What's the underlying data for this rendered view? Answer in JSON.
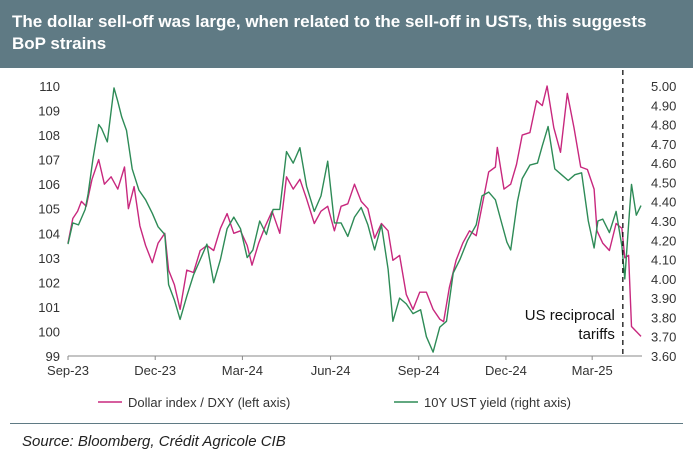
{
  "header": {
    "title": "The dollar sell-off was large, when related to the sell-off in USTs, this suggests BoP strains"
  },
  "source": "Source: Bloomberg, Crédit Agricole CIB",
  "colors": {
    "header_bg": "#5f7a84",
    "dxy": "#c8287e",
    "yield": "#2e8b57"
  },
  "chart_data": {
    "type": "line",
    "title": "The dollar sell-off was large, when related to the sell-off in USTs, this suggests BoP strains",
    "x_ticks": [
      "Sep-23",
      "Dec-23",
      "Mar-24",
      "Jun-24",
      "Sep-24",
      "Dec-24",
      "Mar-25"
    ],
    "x_range": [
      "2023-09-01",
      "2025-04-22"
    ],
    "y_left": {
      "ylim": [
        99,
        110
      ],
      "ticks": [
        "99",
        "100",
        "101",
        "102",
        "103",
        "104",
        "105",
        "106",
        "107",
        "108",
        "109",
        "110"
      ]
    },
    "y_right": {
      "ylim": [
        3.6,
        5.0
      ],
      "ticks": [
        "3.60",
        "3.70",
        "3.80",
        "3.90",
        "4.00",
        "4.10",
        "4.20",
        "4.30",
        "4.40",
        "4.50",
        "4.60",
        "4.70",
        "4.80",
        "4.90",
        "5.00"
      ]
    },
    "legend": {
      "placement": "bottom"
    },
    "annotation": {
      "lines": [
        "US reciprocal",
        "tariffs"
      ],
      "date": "2025-04-02"
    },
    "series": [
      {
        "name": "Dollar index / DXY (left axis)",
        "axis": "left",
        "color": "#c8287e",
        "points": [
          [
            "2023-09-01",
            103.6
          ],
          [
            "2023-09-06",
            104.6
          ],
          [
            "2023-09-11",
            104.9
          ],
          [
            "2023-09-15",
            105.3
          ],
          [
            "2023-09-20",
            105.1
          ],
          [
            "2023-09-26",
            106.2
          ],
          [
            "2023-10-03",
            107.0
          ],
          [
            "2023-10-09",
            106.0
          ],
          [
            "2023-10-16",
            106.3
          ],
          [
            "2023-10-23",
            105.8
          ],
          [
            "2023-10-30",
            106.7
          ],
          [
            "2023-11-03",
            105.0
          ],
          [
            "2023-11-09",
            105.9
          ],
          [
            "2023-11-15",
            104.3
          ],
          [
            "2023-11-21",
            103.5
          ],
          [
            "2023-11-28",
            102.8
          ],
          [
            "2023-12-04",
            103.6
          ],
          [
            "2023-12-11",
            104.0
          ],
          [
            "2023-12-15",
            102.5
          ],
          [
            "2023-12-21",
            101.9
          ],
          [
            "2023-12-27",
            100.9
          ],
          [
            "2024-01-03",
            102.5
          ],
          [
            "2024-01-10",
            102.4
          ],
          [
            "2024-01-17",
            103.3
          ],
          [
            "2024-01-24",
            103.5
          ],
          [
            "2024-01-31",
            103.3
          ],
          [
            "2024-02-07",
            104.2
          ],
          [
            "2024-02-14",
            104.8
          ],
          [
            "2024-02-21",
            104.0
          ],
          [
            "2024-02-28",
            104.1
          ],
          [
            "2024-03-06",
            103.5
          ],
          [
            "2024-03-11",
            102.7
          ],
          [
            "2024-03-18",
            103.6
          ],
          [
            "2024-03-25",
            104.3
          ],
          [
            "2024-04-01",
            104.9
          ],
          [
            "2024-04-09",
            104.0
          ],
          [
            "2024-04-16",
            106.3
          ],
          [
            "2024-04-23",
            105.8
          ],
          [
            "2024-04-30",
            106.2
          ],
          [
            "2024-05-07",
            105.4
          ],
          [
            "2024-05-15",
            104.4
          ],
          [
            "2024-05-22",
            104.9
          ],
          [
            "2024-05-29",
            105.1
          ],
          [
            "2024-06-05",
            104.1
          ],
          [
            "2024-06-12",
            105.1
          ],
          [
            "2024-06-19",
            105.2
          ],
          [
            "2024-06-26",
            106.0
          ],
          [
            "2024-07-03",
            105.3
          ],
          [
            "2024-07-10",
            105.0
          ],
          [
            "2024-07-17",
            103.8
          ],
          [
            "2024-07-24",
            104.4
          ],
          [
            "2024-07-31",
            104.1
          ],
          [
            "2024-08-05",
            102.9
          ],
          [
            "2024-08-12",
            103.1
          ],
          [
            "2024-08-19",
            101.5
          ],
          [
            "2024-08-26",
            100.9
          ],
          [
            "2024-09-02",
            101.6
          ],
          [
            "2024-09-09",
            101.6
          ],
          [
            "2024-09-16",
            100.9
          ],
          [
            "2024-09-23",
            100.5
          ],
          [
            "2024-09-27",
            100.4
          ],
          [
            "2024-10-03",
            101.8
          ],
          [
            "2024-10-10",
            102.9
          ],
          [
            "2024-10-17",
            103.6
          ],
          [
            "2024-10-24",
            104.1
          ],
          [
            "2024-10-31",
            103.9
          ],
          [
            "2024-11-06",
            105.1
          ],
          [
            "2024-11-13",
            106.5
          ],
          [
            "2024-11-20",
            106.7
          ],
          [
            "2024-11-22",
            107.5
          ],
          [
            "2024-11-29",
            105.8
          ],
          [
            "2024-12-06",
            106.0
          ],
          [
            "2024-12-12",
            106.8
          ],
          [
            "2024-12-18",
            108.0
          ],
          [
            "2024-12-26",
            108.1
          ],
          [
            "2025-01-02",
            109.4
          ],
          [
            "2025-01-08",
            109.2
          ],
          [
            "2025-01-13",
            110.0
          ],
          [
            "2025-01-20",
            108.3
          ],
          [
            "2025-01-27",
            107.3
          ],
          [
            "2025-02-03",
            109.7
          ],
          [
            "2025-02-10",
            108.3
          ],
          [
            "2025-02-17",
            106.7
          ],
          [
            "2025-02-24",
            106.6
          ],
          [
            "2025-03-03",
            105.8
          ],
          [
            "2025-03-06",
            104.1
          ],
          [
            "2025-03-12",
            103.6
          ],
          [
            "2025-03-19",
            103.3
          ],
          [
            "2025-03-26",
            104.4
          ],
          [
            "2025-04-01",
            104.2
          ],
          [
            "2025-04-04",
            103.0
          ],
          [
            "2025-04-08",
            103.1
          ],
          [
            "2025-04-11",
            100.2
          ],
          [
            "2025-04-21",
            99.8
          ]
        ]
      },
      {
        "name": "10Y UST yield (right axis)",
        "axis": "right",
        "color": "#2e8b57",
        "points": [
          [
            "2023-09-01",
            4.18
          ],
          [
            "2023-09-06",
            4.29
          ],
          [
            "2023-09-12",
            4.28
          ],
          [
            "2023-09-19",
            4.36
          ],
          [
            "2023-09-22",
            4.44
          ],
          [
            "2023-09-27",
            4.62
          ],
          [
            "2023-10-03",
            4.8
          ],
          [
            "2023-10-06",
            4.78
          ],
          [
            "2023-10-12",
            4.71
          ],
          [
            "2023-10-19",
            4.99
          ],
          [
            "2023-10-23",
            4.92
          ],
          [
            "2023-10-27",
            4.84
          ],
          [
            "2023-11-01",
            4.77
          ],
          [
            "2023-11-07",
            4.57
          ],
          [
            "2023-11-14",
            4.46
          ],
          [
            "2023-11-21",
            4.41
          ],
          [
            "2023-11-28",
            4.34
          ],
          [
            "2023-12-04",
            4.27
          ],
          [
            "2023-12-11",
            4.23
          ],
          [
            "2023-12-15",
            3.97
          ],
          [
            "2023-12-21",
            3.89
          ],
          [
            "2023-12-27",
            3.79
          ],
          [
            "2024-01-03",
            3.91
          ],
          [
            "2024-01-10",
            4.02
          ],
          [
            "2024-01-17",
            4.1
          ],
          [
            "2024-01-24",
            4.18
          ],
          [
            "2024-01-31",
            3.98
          ],
          [
            "2024-02-07",
            4.1
          ],
          [
            "2024-02-14",
            4.26
          ],
          [
            "2024-02-21",
            4.32
          ],
          [
            "2024-02-28",
            4.26
          ],
          [
            "2024-03-06",
            4.11
          ],
          [
            "2024-03-12",
            4.15
          ],
          [
            "2024-03-19",
            4.3
          ],
          [
            "2024-03-26",
            4.23
          ],
          [
            "2024-04-02",
            4.36
          ],
          [
            "2024-04-09",
            4.36
          ],
          [
            "2024-04-16",
            4.66
          ],
          [
            "2024-04-23",
            4.6
          ],
          [
            "2024-04-30",
            4.68
          ],
          [
            "2024-05-07",
            4.48
          ],
          [
            "2024-05-15",
            4.35
          ],
          [
            "2024-05-22",
            4.43
          ],
          [
            "2024-05-29",
            4.61
          ],
          [
            "2024-06-05",
            4.29
          ],
          [
            "2024-06-12",
            4.29
          ],
          [
            "2024-06-19",
            4.22
          ],
          [
            "2024-06-26",
            4.32
          ],
          [
            "2024-07-03",
            4.37
          ],
          [
            "2024-07-10",
            4.28
          ],
          [
            "2024-07-17",
            4.15
          ],
          [
            "2024-07-24",
            4.28
          ],
          [
            "2024-07-31",
            4.05
          ],
          [
            "2024-08-05",
            3.78
          ],
          [
            "2024-08-12",
            3.9
          ],
          [
            "2024-08-19",
            3.87
          ],
          [
            "2024-08-26",
            3.82
          ],
          [
            "2024-09-03",
            3.84
          ],
          [
            "2024-09-09",
            3.7
          ],
          [
            "2024-09-16",
            3.62
          ],
          [
            "2024-09-23",
            3.75
          ],
          [
            "2024-09-30",
            3.78
          ],
          [
            "2024-10-07",
            4.03
          ],
          [
            "2024-10-14",
            4.1
          ],
          [
            "2024-10-22",
            4.2
          ],
          [
            "2024-10-31",
            4.28
          ],
          [
            "2024-11-06",
            4.43
          ],
          [
            "2024-11-13",
            4.45
          ],
          [
            "2024-11-20",
            4.41
          ],
          [
            "2024-11-26",
            4.3
          ],
          [
            "2024-12-02",
            4.19
          ],
          [
            "2024-12-06",
            4.15
          ],
          [
            "2024-12-13",
            4.4
          ],
          [
            "2024-12-18",
            4.52
          ],
          [
            "2024-12-26",
            4.59
          ],
          [
            "2025-01-03",
            4.6
          ],
          [
            "2025-01-08",
            4.69
          ],
          [
            "2025-01-14",
            4.79
          ],
          [
            "2025-01-21",
            4.57
          ],
          [
            "2025-01-28",
            4.54
          ],
          [
            "2025-02-04",
            4.51
          ],
          [
            "2025-02-11",
            4.54
          ],
          [
            "2025-02-18",
            4.55
          ],
          [
            "2025-02-25",
            4.3
          ],
          [
            "2025-03-03",
            4.16
          ],
          [
            "2025-03-07",
            4.3
          ],
          [
            "2025-03-12",
            4.31
          ],
          [
            "2025-03-19",
            4.24
          ],
          [
            "2025-03-26",
            4.35
          ],
          [
            "2025-04-01",
            4.17
          ],
          [
            "2025-04-04",
            4.0
          ],
          [
            "2025-04-09",
            4.35
          ],
          [
            "2025-04-11",
            4.49
          ],
          [
            "2025-04-16",
            4.33
          ],
          [
            "2025-04-21",
            4.38
          ]
        ]
      }
    ]
  }
}
